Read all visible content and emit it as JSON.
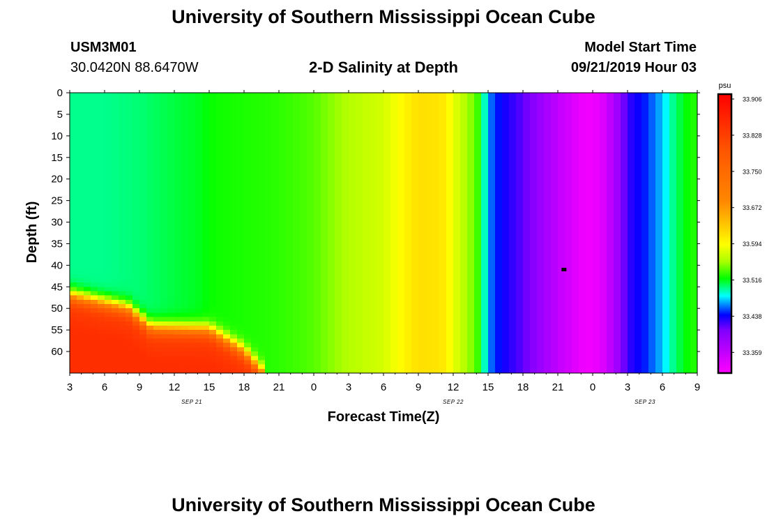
{
  "header": {
    "title": "University of Southern Mississippi Ocean Cube",
    "station_id": "USM3M01",
    "location": "30.0420N 88.6470W",
    "plot_title": "2-D Salinity at Depth",
    "model_label": "Model Start Time",
    "model_time": "09/21/2019 Hour 03"
  },
  "footer": {
    "title": "University of Southern Mississippi Ocean Cube"
  },
  "chart_data": {
    "type": "heatmap",
    "title": "2-D Salinity at Depth",
    "xlabel": "Forecast Time(Z)",
    "ylabel": "Depth (ft)",
    "x_unit": "hours since 09/21 00Z",
    "xlim": [
      3,
      57
    ],
    "ylim": [
      0,
      65
    ],
    "x_ticks": [
      3,
      6,
      9,
      12,
      15,
      18,
      21,
      24,
      27,
      30,
      33,
      36,
      39,
      42,
      45,
      48,
      51,
      54,
      57
    ],
    "x_tick_labels": [
      "3",
      "6",
      "9",
      "12",
      "15",
      "18",
      "21",
      "0",
      "3",
      "6",
      "9",
      "12",
      "15",
      "18",
      "21",
      "0",
      "3",
      "6",
      "9"
    ],
    "date_labels": [
      {
        "text": "SEP 21",
        "x": 13.5
      },
      {
        "text": "SEP 22",
        "x": 36
      },
      {
        "text": "SEP 23",
        "x": 52.5
      }
    ],
    "y_ticks": [
      0,
      5,
      10,
      15,
      20,
      25,
      30,
      35,
      40,
      45,
      50,
      55,
      60
    ],
    "colorbar": {
      "unit": "psu",
      "labels": [
        "33.906",
        "33.828",
        "33.750",
        "33.672",
        "33.594",
        "33.516",
        "33.438",
        "33.359"
      ],
      "stops": [
        {
          "v": 33.28,
          "color": "#ff00ff"
        },
        {
          "v": 33.33,
          "color": "#c000ff"
        },
        {
          "v": 33.38,
          "color": "#8000ff"
        },
        {
          "v": 33.415,
          "color": "#0000ff"
        },
        {
          "v": 33.46,
          "color": "#00ffff"
        },
        {
          "v": 33.5,
          "color": "#00ff00"
        },
        {
          "v": 33.54,
          "color": "#aaff00"
        },
        {
          "v": 33.58,
          "color": "#ffff00"
        },
        {
          "v": 33.62,
          "color": "#ffcc00"
        },
        {
          "v": 33.68,
          "color": "#ff8800"
        },
        {
          "v": 33.8,
          "color": "#ff5500"
        },
        {
          "v": 33.93,
          "color": "#ff0000"
        }
      ]
    },
    "surface_salinity": {
      "times": [
        3,
        6,
        9,
        12,
        14,
        15.5,
        18,
        21,
        24,
        27,
        30,
        31,
        33,
        35,
        36,
        37,
        38,
        38.5,
        39,
        40,
        42,
        45,
        47,
        48,
        49,
        50,
        51,
        52.5,
        54,
        55,
        56,
        57
      ],
      "values": [
        33.478,
        33.478,
        33.482,
        33.49,
        33.495,
        33.503,
        33.506,
        33.51,
        33.52,
        33.545,
        33.56,
        33.575,
        33.605,
        33.6,
        33.57,
        33.545,
        33.52,
        33.49,
        33.44,
        33.415,
        33.39,
        33.33,
        33.295,
        33.29,
        33.31,
        33.35,
        33.4,
        33.42,
        33.45,
        33.48,
        33.5,
        33.51
      ]
    },
    "bottom_high_salinity": {
      "region_x_range": [
        3,
        19.5
      ],
      "depth_top_at_times": {
        "times": [
          3,
          8,
          10,
          15,
          18,
          20
        ],
        "depths": [
          47,
          50,
          54.5,
          55,
          60,
          66
        ]
      },
      "peak_value": 33.86,
      "background_value": 33.495
    },
    "marker": {
      "x": 45.5,
      "y": 41
    }
  }
}
